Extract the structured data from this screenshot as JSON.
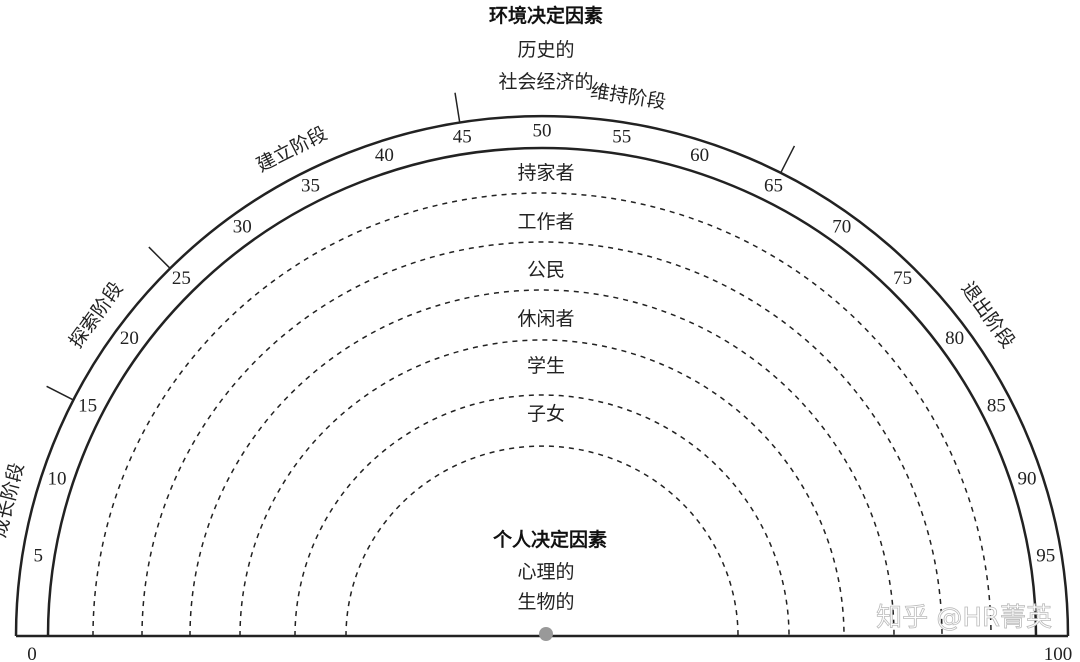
{
  "top_title": "环境决定因素",
  "top_sub": [
    "历史的",
    "社会经济的"
  ],
  "center_title": "个人决定因素",
  "center_sub": [
    "心理的",
    "生物的"
  ],
  "stages": [
    {
      "label": "成长阶段",
      "from": 0,
      "to": 15
    },
    {
      "label": "探索阶段",
      "from": 15,
      "to": 25
    },
    {
      "label": "建立阶段",
      "from": 25,
      "to": 45
    },
    {
      "label": "维持阶段",
      "from": 45,
      "to": 65
    },
    {
      "label": "退出阶段",
      "from": 65,
      "to": 100
    }
  ],
  "age_ticks": [
    "5",
    "10",
    "15",
    "20",
    "25",
    "30",
    "35",
    "40",
    "45",
    "50",
    "55",
    "60",
    "65",
    "70",
    "75",
    "80",
    "85",
    "90",
    "95"
  ],
  "axis_ends": [
    "0",
    "100"
  ],
  "roles": [
    "持家者",
    "工作者",
    "公民",
    "休闲者",
    "学生",
    "子女"
  ],
  "watermark": "知乎 @HR菁英"
}
